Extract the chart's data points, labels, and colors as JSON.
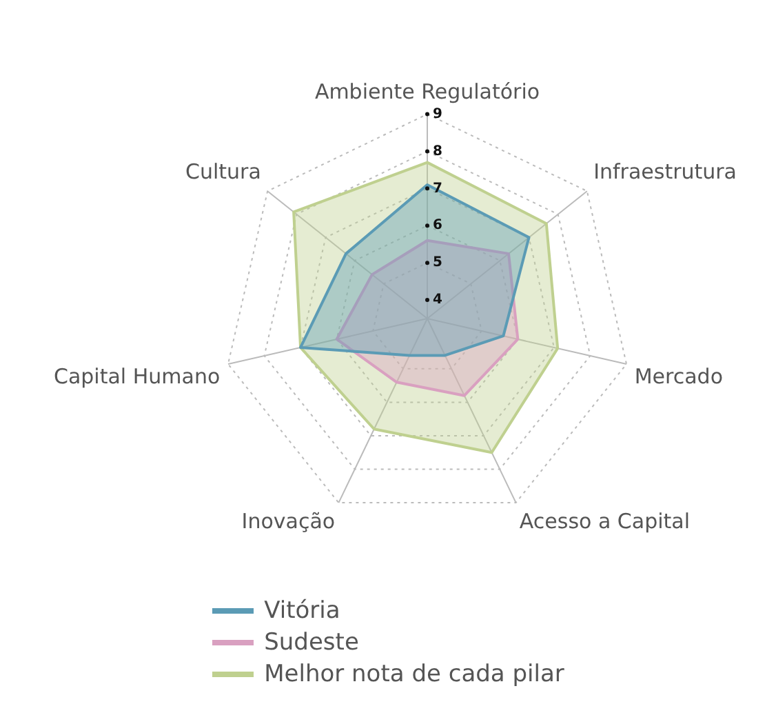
{
  "chart_data": {
    "type": "radar",
    "categories": [
      "Ambiente Regulatório",
      "Infraestrutura",
      "Mercado",
      "Acesso a Capital",
      "Inovação",
      "Capital Humano",
      "Cultura"
    ],
    "series": [
      {
        "name": "Vitória",
        "color": "#5b9bb5",
        "values": [
          7.1,
          7.0,
          5.6,
          4.6,
          4.6,
          7.0,
          6.3
        ]
      },
      {
        "name": "Sudeste",
        "color": "#d9a0c0",
        "values": [
          5.6,
          6.3,
          6.0,
          5.8,
          5.4,
          6.0,
          5.4
        ]
      },
      {
        "name": "Melhor nota de cada pilar",
        "color": "#bfd08f",
        "values": [
          7.7,
          7.6,
          7.1,
          7.5,
          6.8,
          7.0,
          8.1
        ]
      }
    ],
    "ylim": [
      3.5,
      9
    ],
    "yticks": [
      4,
      5,
      6,
      7,
      8,
      9
    ],
    "grid": true,
    "legend": "bottom",
    "marker": "none"
  }
}
